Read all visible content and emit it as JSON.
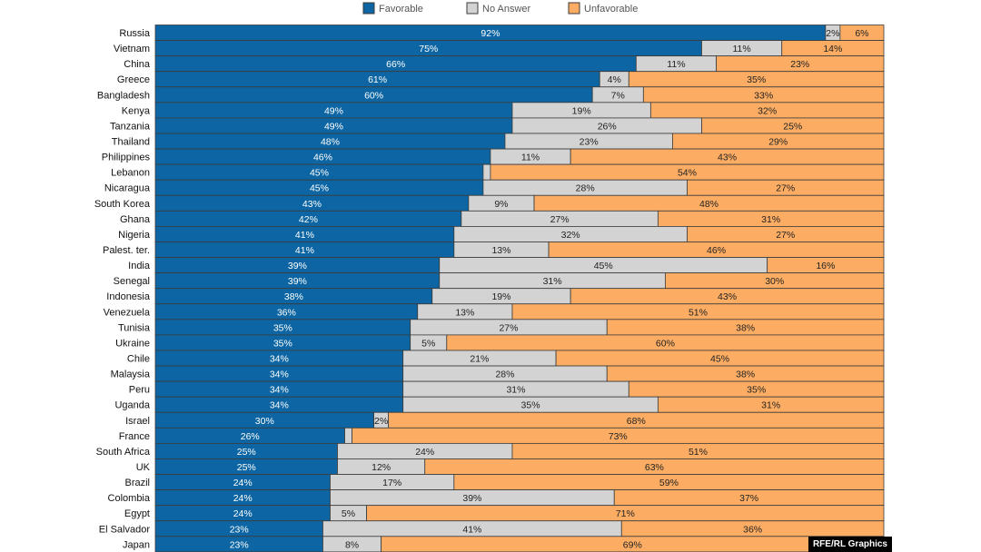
{
  "chart_data": {
    "type": "bar",
    "orientation": "horizontal",
    "stacked": true,
    "legend_position": "top-center",
    "legend": [
      "Favorable",
      "No Answer",
      "Unfavorable"
    ],
    "colors": {
      "Favorable": "#0d66a3",
      "No Answer": "#d3d3d3",
      "Unfavorable": "#fcad63",
      "edge": "#3b3b3b"
    },
    "categories": [
      "Russia",
      "Vietnam",
      "China",
      "Greece",
      "Bangladesh",
      "Kenya",
      "Tanzania",
      "Thailand",
      "Philippines",
      "Lebanon",
      "Nicaragua",
      "South Korea",
      "Ghana",
      "Nigeria",
      "Palest. ter.",
      "India",
      "Senegal",
      "Indonesia",
      "Venezuela",
      "Tunisia",
      "Ukraine",
      "Chile",
      "Malaysia",
      "Peru",
      "Uganda",
      "Israel",
      "France",
      "South Africa",
      "UK",
      "Brazil",
      "Colombia",
      "Egypt",
      "El Salvador",
      "Japan"
    ],
    "series": [
      {
        "name": "Favorable",
        "values": [
          92,
          75,
          66,
          61,
          60,
          49,
          49,
          48,
          46,
          45,
          45,
          43,
          42,
          41,
          41,
          39,
          39,
          38,
          36,
          35,
          35,
          34,
          34,
          34,
          34,
          30,
          26,
          25,
          25,
          24,
          24,
          24,
          23,
          23
        ]
      },
      {
        "name": "No Answer",
        "values": [
          2,
          11,
          11,
          4,
          7,
          19,
          26,
          23,
          11,
          1,
          28,
          9,
          27,
          32,
          13,
          45,
          31,
          19,
          13,
          27,
          5,
          21,
          28,
          31,
          35,
          2,
          1,
          24,
          12,
          17,
          39,
          5,
          41,
          8
        ]
      },
      {
        "name": "Unfavorable",
        "values": [
          6,
          14,
          23,
          35,
          33,
          32,
          25,
          29,
          43,
          54,
          27,
          48,
          31,
          27,
          46,
          16,
          30,
          43,
          51,
          38,
          60,
          45,
          38,
          35,
          31,
          68,
          73,
          51,
          63,
          59,
          37,
          71,
          36,
          69
        ]
      }
    ],
    "hidden_labels": {
      "No Answer": [
        "Lebanon",
        "France"
      ]
    },
    "xlim": [
      0,
      100
    ],
    "title": "",
    "xlabel": "",
    "ylabel": ""
  },
  "credit": "RFE/RL Graphics"
}
